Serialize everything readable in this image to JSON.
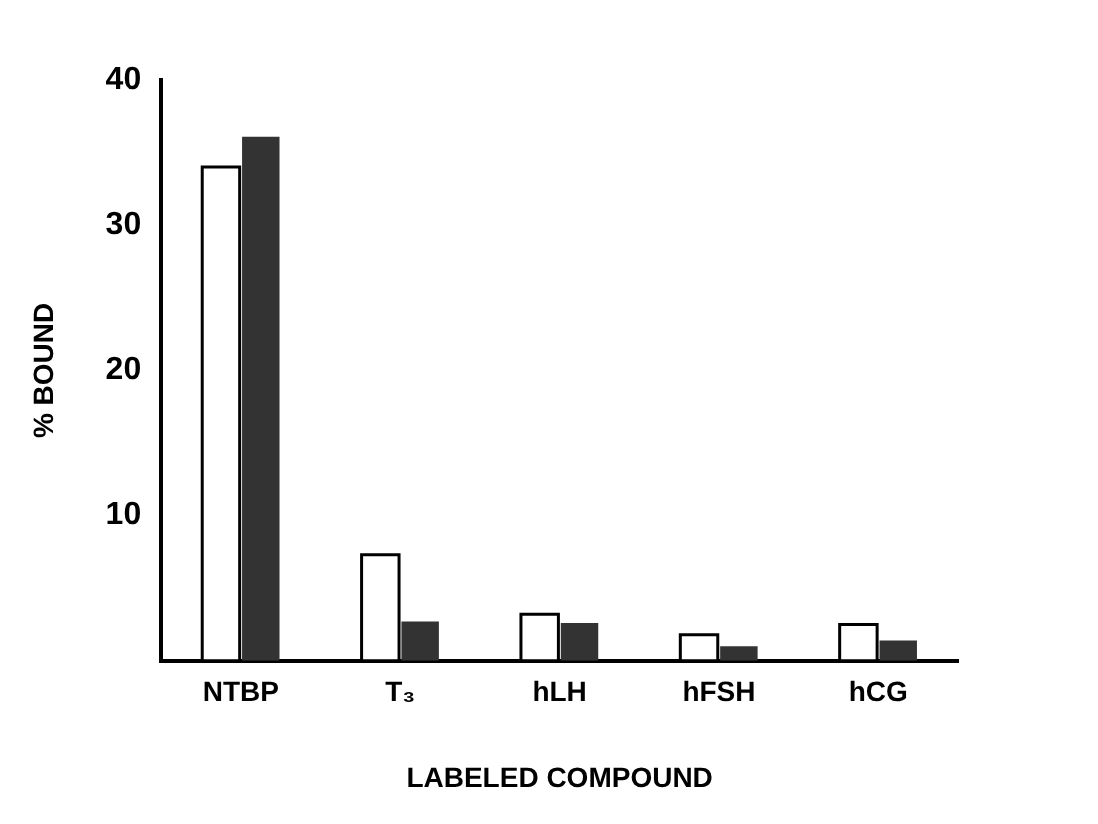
{
  "chart_data": {
    "type": "bar",
    "xlabel": "LABELED COMPOUND",
    "ylabel": "% BOUND",
    "categories": [
      "NTBP",
      "T₃",
      "hLH",
      "hFSH",
      "hCG"
    ],
    "series": [
      {
        "color": "#ffffff",
        "values": [
          34,
          7.3,
          3.2,
          1.8,
          2.5
        ]
      },
      {
        "color": "#333333",
        "values": [
          36.1,
          2.7,
          2.6,
          1.0,
          1.4
        ]
      }
    ],
    "ylim": [
      0,
      40
    ],
    "yticks": [
      10,
      20,
      30,
      40
    ],
    "grid": false,
    "legend": false
  }
}
